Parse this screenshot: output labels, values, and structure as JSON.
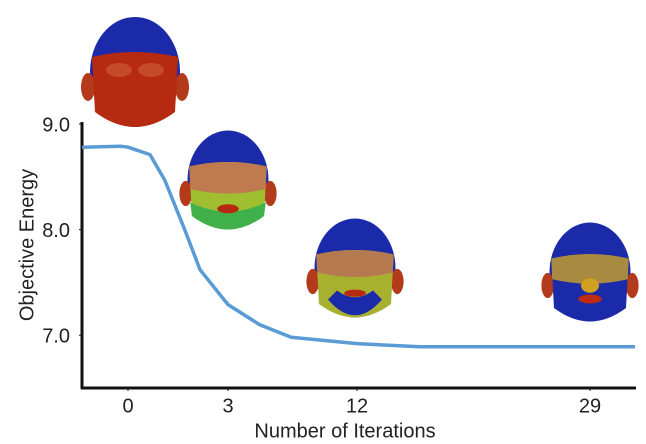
{
  "chart_data": {
    "type": "line",
    "xlabel": "Number of Iterations",
    "ylabel": "Objective Energy",
    "x": [
      -1.4,
      -0.24,
      0,
      0.66,
      1.1,
      1.7,
      2.16,
      3,
      5.2,
      7.4,
      12,
      16.6,
      22.4,
      32.3
    ],
    "series": [
      {
        "color": "#5b9bd5",
        "values": [
          8.78,
          8.79,
          8.78,
          8.71,
          8.47,
          8.0,
          7.62,
          7.29,
          7.1,
          6.98,
          6.92,
          6.89,
          6.89,
          6.89
        ]
      }
    ],
    "xlim": [
      -1.4,
      32.3
    ],
    "xticks": [
      0,
      3,
      12,
      29
    ],
    "ylim": [
      6.5,
      9.0
    ],
    "yticks": [
      {
        "value": 7,
        "label": "7.0"
      },
      {
        "value": 8,
        "label": "8.0"
      },
      {
        "value": 9,
        "label": "9.0"
      }
    ]
  }
}
